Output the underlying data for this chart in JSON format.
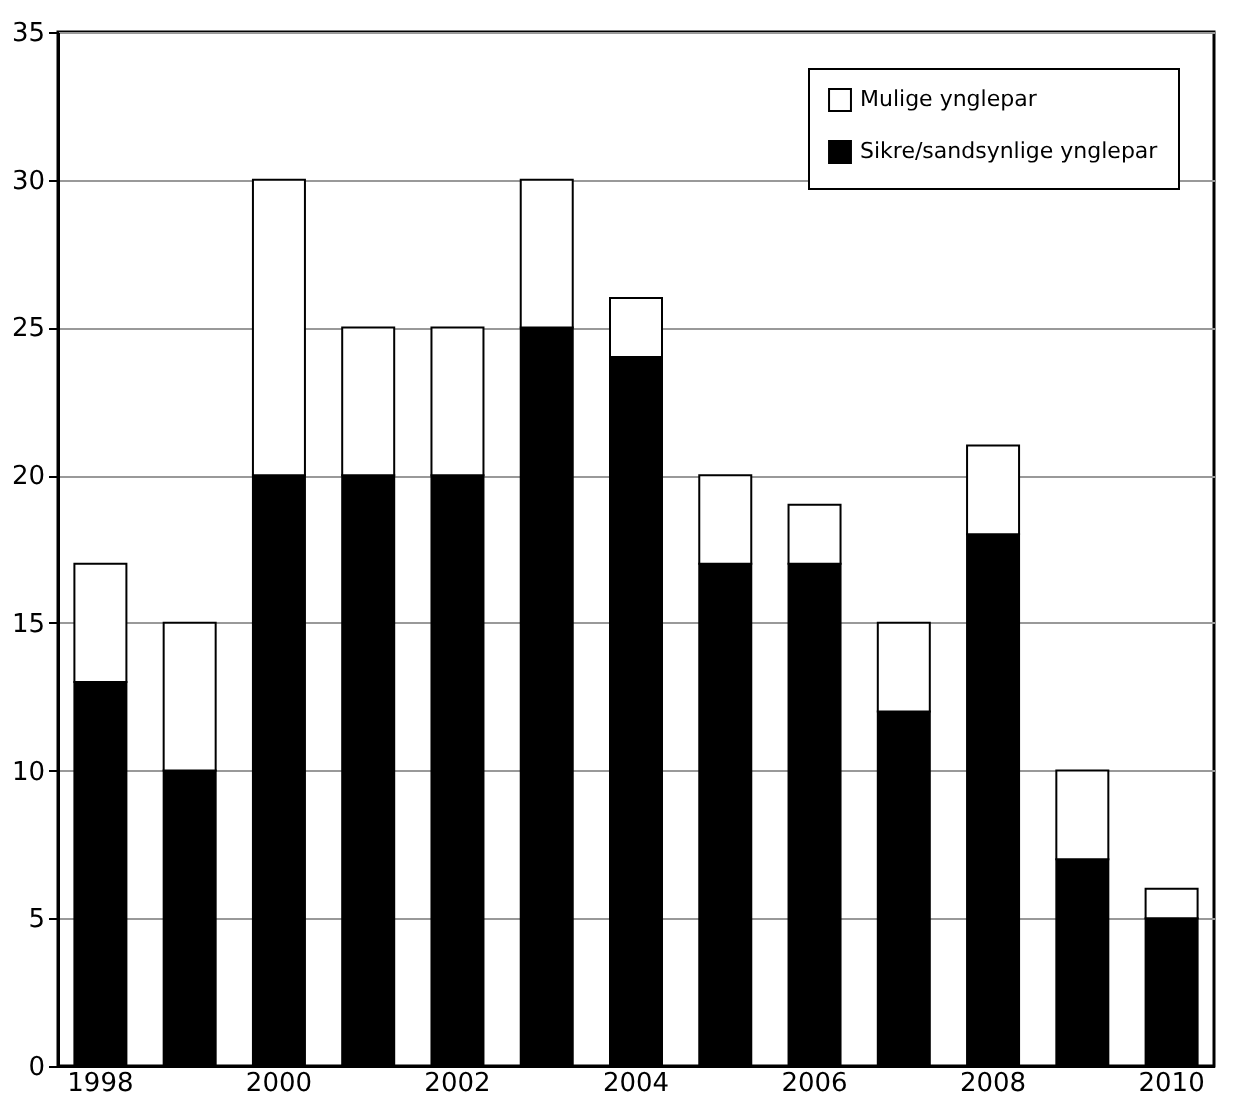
{
  "chart_data": {
    "type": "bar",
    "stacked": true,
    "categories": [
      "1998",
      null,
      "2000",
      null,
      "2002",
      null,
      "2004",
      null,
      "2006",
      null,
      "2008",
      null,
      "2010"
    ],
    "series": [
      {
        "name": "Sikre/sandsynlige ynglepar",
        "color": "#000000",
        "values": [
          13,
          10,
          20,
          20,
          20,
          25,
          24,
          17,
          17,
          12,
          18,
          7,
          5
        ]
      },
      {
        "name": "Mulige ynglepar",
        "color": "#ffffff",
        "values": [
          4,
          5,
          10,
          5,
          5,
          5,
          2,
          3,
          2,
          3,
          3,
          3,
          1
        ]
      }
    ],
    "ylim": [
      0,
      35
    ],
    "yticks": [
      0,
      5,
      10,
      15,
      20,
      25,
      30,
      35
    ],
    "grid": "y",
    "legend": "top right"
  }
}
